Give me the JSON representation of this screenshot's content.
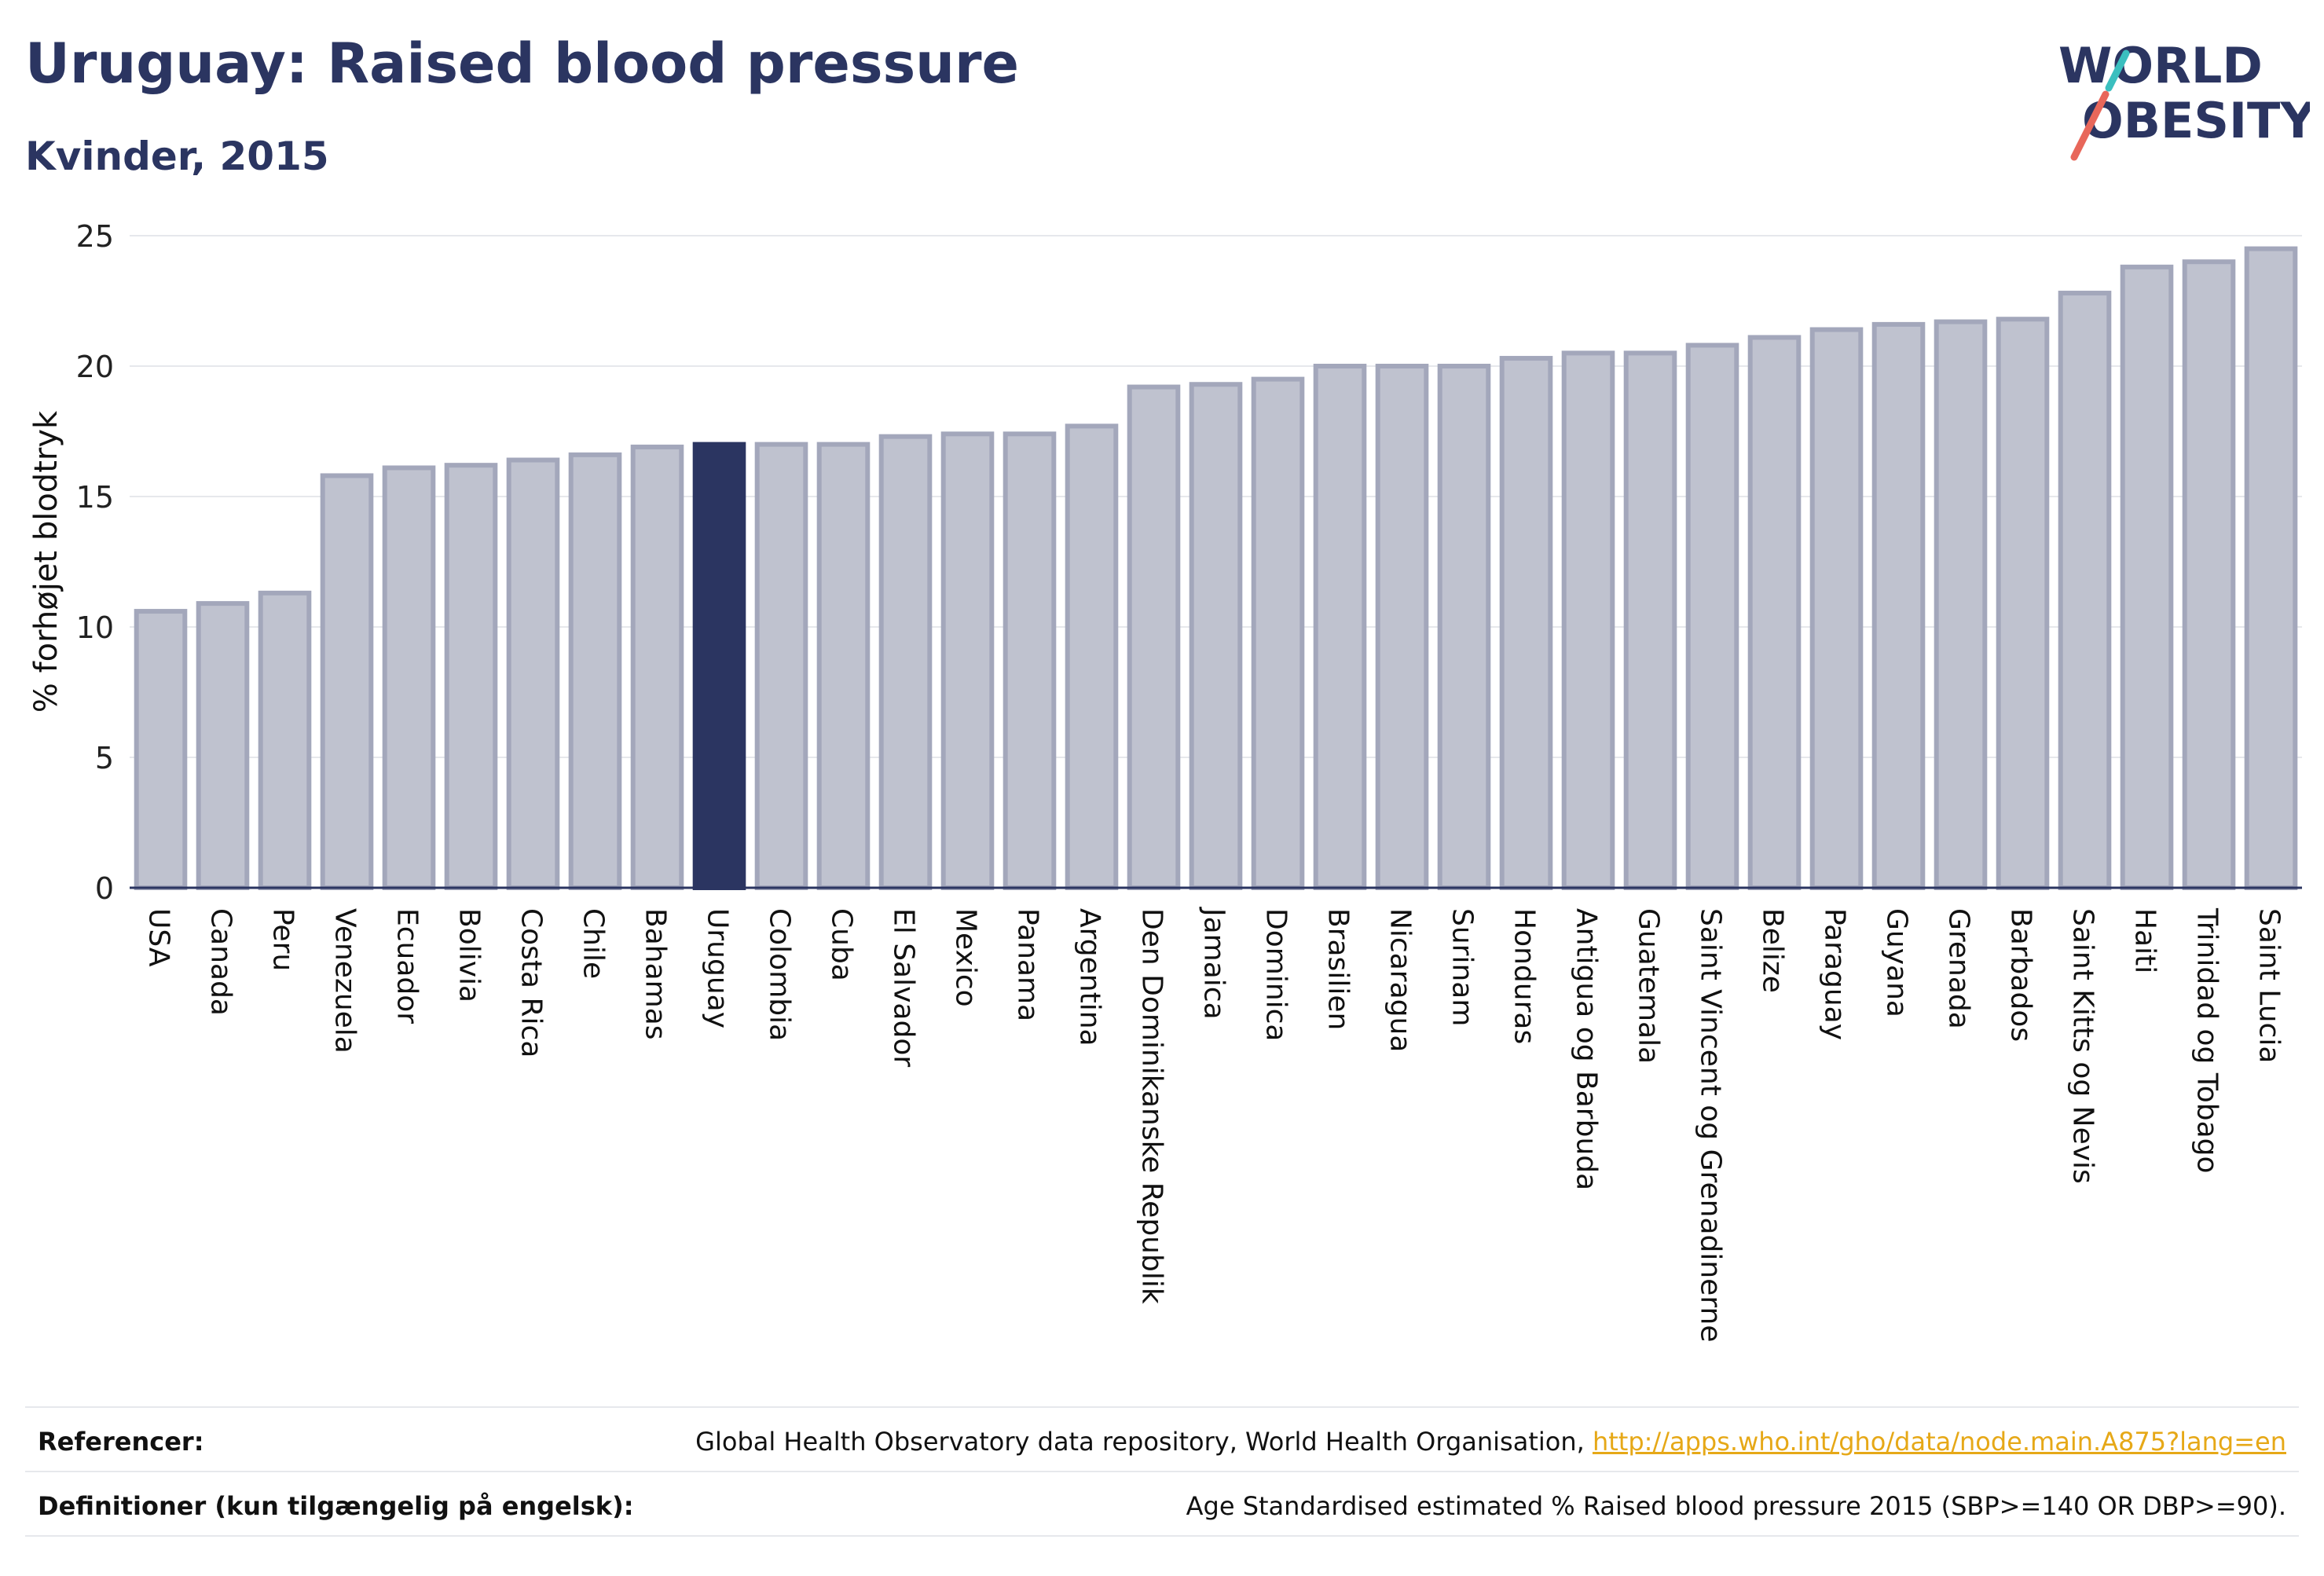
{
  "header": {
    "title": "Uruguay: Raised blood pressure",
    "subtitle": "Kvinder, 2015"
  },
  "logo": {
    "line1": "WORLD",
    "line2": "OBESITY",
    "colors": {
      "text": "#2b3561",
      "slash_red": "#e8675a",
      "slash_teal": "#3bbfbf"
    }
  },
  "colors": {
    "bar_fill": "#bfc2cf",
    "bar_stroke": "#a3a7bb",
    "highlight_fill": "#2b3561",
    "grid": "#e6e8ec",
    "axis": "#2b3561"
  },
  "chart_data": {
    "type": "bar",
    "title": "Uruguay: Raised blood pressure",
    "subtitle": "Kvinder, 2015",
    "ylabel": "% forhøjet blodtryk",
    "xlabel": "",
    "ylim": [
      0,
      25
    ],
    "yticks": [
      0,
      5,
      10,
      15,
      20,
      25
    ],
    "grid": true,
    "highlight": "Uruguay",
    "categories": [
      "USA",
      "Canada",
      "Peru",
      "Venezuela",
      "Ecuador",
      "Bolivia",
      "Costa Rica",
      "Chile",
      "Bahamas",
      "Uruguay",
      "Colombia",
      "Cuba",
      "El Salvador",
      "Mexico",
      "Panama",
      "Argentina",
      "Den Dominikanske Republik",
      "Jamaica",
      "Dominica",
      "Brasilien",
      "Nicaragua",
      "Surinam",
      "Honduras",
      "Antigua og Barbuda",
      "Guatemala",
      "Saint Vincent og Grenadinerne",
      "Belize",
      "Paraguay",
      "Guyana",
      "Grenada",
      "Barbados",
      "Saint Kitts og Nevis",
      "Haiti",
      "Trinidad og Tobago",
      "Saint Lucia"
    ],
    "values": [
      10.6,
      10.9,
      11.3,
      15.8,
      16.1,
      16.2,
      16.4,
      16.6,
      16.9,
      17.0,
      17.0,
      17.0,
      17.3,
      17.4,
      17.4,
      17.7,
      19.2,
      19.3,
      19.5,
      20.0,
      20.0,
      20.0,
      20.3,
      20.5,
      20.5,
      20.8,
      21.1,
      21.4,
      21.6,
      21.7,
      21.8,
      22.8,
      23.8,
      24.0,
      24.5
    ]
  },
  "footer": {
    "references_label": "Referencer:",
    "references_text": "Global Health Observatory data repository, World Health Organisation, ",
    "references_link": "http://apps.who.int/gho/data/node.main.A875?lang=en",
    "definitions_label": "Definitioner (kun tilgængelig på engelsk):",
    "definitions_text": "Age Standardised estimated % Raised blood pressure 2015 (SBP>=140 OR DBP>=90)."
  }
}
